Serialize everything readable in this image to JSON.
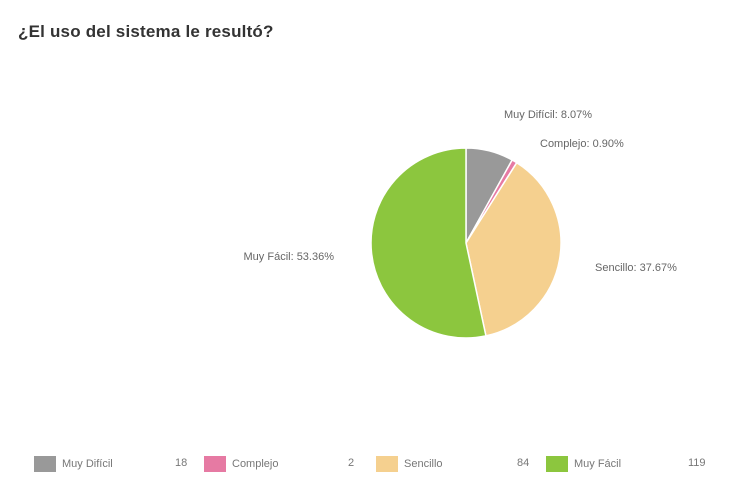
{
  "chart_data": {
    "type": "pie",
    "title": "¿El uso del sistema le resultó?",
    "slices": [
      {
        "name": "Muy Difícil",
        "value": 18,
        "percent_label": "Muy Difícil: 8.07%",
        "color": "#999999"
      },
      {
        "name": "Complejo",
        "value": 2,
        "percent_label": "Complejo: 0.90%",
        "color": "#e67aa3"
      },
      {
        "name": "Sencillo",
        "value": 84,
        "percent_label": "Sencillo: 37.67%",
        "color": "#f5d08f"
      },
      {
        "name": "Muy Fácil",
        "value": 119,
        "percent_label": "Muy Fácil: 53.36%",
        "color": "#8cc63e"
      }
    ],
    "legend_placement": "bottom",
    "start_angle": "top, clockwise"
  }
}
